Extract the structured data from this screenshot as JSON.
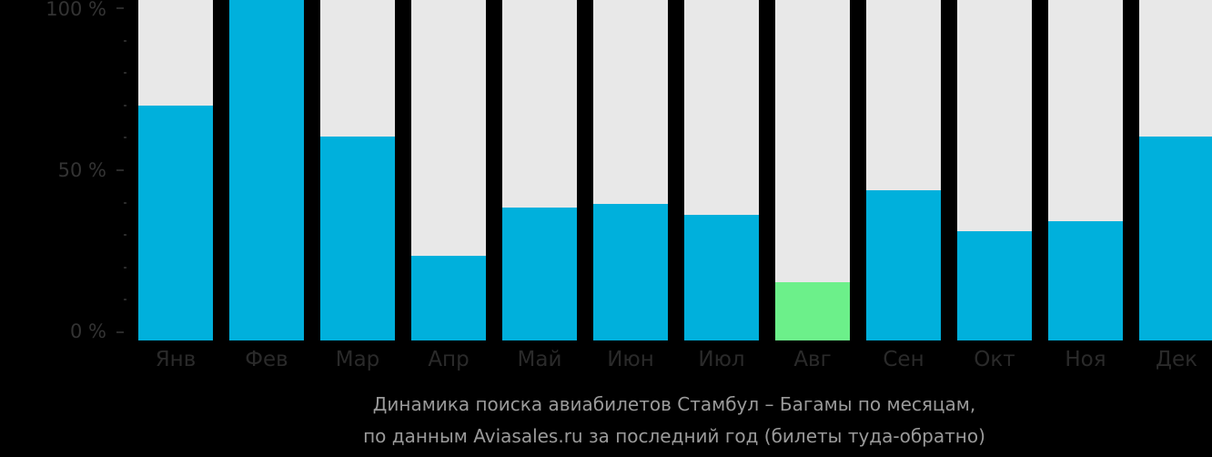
{
  "chart_data": {
    "type": "bar",
    "stacked_percent": true,
    "categories": [
      "Янв",
      "Фев",
      "Мар",
      "Апр",
      "Май",
      "Июн",
      "Июл",
      "Авг",
      "Сен",
      "Окт",
      "Ноя",
      "Дек"
    ],
    "values": [
      69,
      100,
      60,
      25,
      39,
      40,
      37,
      17,
      44,
      32,
      35,
      60
    ],
    "highlight_index": 7,
    "colors": {
      "bar": "#00b0dc",
      "highlight": "#6cf08a",
      "background_bar": "#e8e8e8"
    },
    "yticks": [
      "0 %",
      "50 %",
      "100 %"
    ],
    "ylim": [
      0,
      100
    ],
    "title": "Динамика поиска авиабилетов Стамбул – Багамы по месяцам,",
    "subtitle": "по данным Aviasales.ru за последний год (билеты туда-обратно)",
    "xlabel": "",
    "ylabel": ""
  },
  "axis": {
    "y100": "100 %",
    "y50": "50 %",
    "y0": "0 %"
  },
  "caption": {
    "line1": "Динамика поиска авиабилетов Стамбул – Багамы по месяцам,",
    "line2": "по данным Aviasales.ru за последний год (билеты туда-обратно)"
  }
}
